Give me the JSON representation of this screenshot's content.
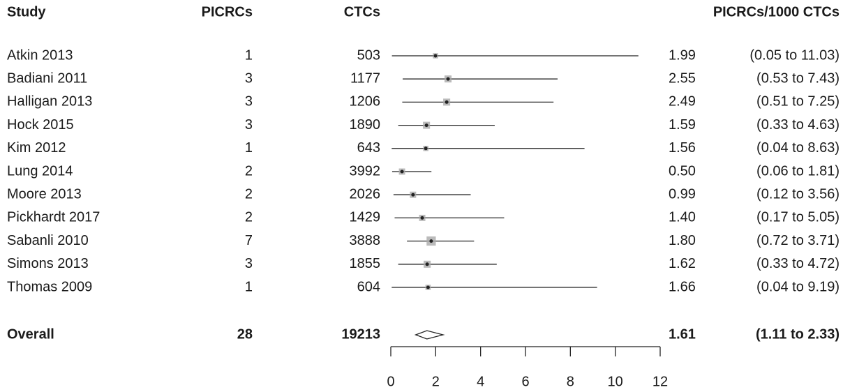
{
  "chart_data": {
    "type": "forest",
    "headers": {
      "study": "Study",
      "picrcs": "PICRCs",
      "ctcs": "CTCs",
      "rate": "PICRCs/1000 CTCs"
    },
    "rows": [
      {
        "study": "Atkin 2013",
        "picrcs": 1,
        "ctcs": 503,
        "estimate": 1.99,
        "lower": 0.05,
        "upper": 11.03,
        "estimate_label": "1.99",
        "ci_label": "(0.05 to 11.03)"
      },
      {
        "study": "Badiani 2011",
        "picrcs": 3,
        "ctcs": 1177,
        "estimate": 2.55,
        "lower": 0.53,
        "upper": 7.43,
        "estimate_label": "2.55",
        "ci_label": "(0.53 to 7.43)"
      },
      {
        "study": "Halligan 2013",
        "picrcs": 3,
        "ctcs": 1206,
        "estimate": 2.49,
        "lower": 0.51,
        "upper": 7.25,
        "estimate_label": "2.49",
        "ci_label": "(0.51 to 7.25)"
      },
      {
        "study": "Hock 2015",
        "picrcs": 3,
        "ctcs": 1890,
        "estimate": 1.59,
        "lower": 0.33,
        "upper": 4.63,
        "estimate_label": "1.59",
        "ci_label": "(0.33 to 4.63)"
      },
      {
        "study": "Kim 2012",
        "picrcs": 1,
        "ctcs": 643,
        "estimate": 1.56,
        "lower": 0.04,
        "upper": 8.63,
        "estimate_label": "1.56",
        "ci_label": "(0.04 to 8.63)"
      },
      {
        "study": "Lung 2014",
        "picrcs": 2,
        "ctcs": 3992,
        "estimate": 0.5,
        "lower": 0.06,
        "upper": 1.81,
        "estimate_label": "0.50",
        "ci_label": "(0.06 to 1.81)"
      },
      {
        "study": "Moore 2013",
        "picrcs": 2,
        "ctcs": 2026,
        "estimate": 0.99,
        "lower": 0.12,
        "upper": 3.56,
        "estimate_label": "0.99",
        "ci_label": "(0.12 to 3.56)"
      },
      {
        "study": "Pickhardt 2017",
        "picrcs": 2,
        "ctcs": 1429,
        "estimate": 1.4,
        "lower": 0.17,
        "upper": 5.05,
        "estimate_label": "1.40",
        "ci_label": "(0.17 to 5.05)"
      },
      {
        "study": "Sabanli 2010",
        "picrcs": 7,
        "ctcs": 3888,
        "estimate": 1.8,
        "lower": 0.72,
        "upper": 3.71,
        "estimate_label": "1.80",
        "ci_label": "(0.72 to 3.71)"
      },
      {
        "study": "Simons 2013",
        "picrcs": 3,
        "ctcs": 1855,
        "estimate": 1.62,
        "lower": 0.33,
        "upper": 4.72,
        "estimate_label": "1.62",
        "ci_label": "(0.33 to 4.72)"
      },
      {
        "study": "Thomas 2009",
        "picrcs": 1,
        "ctcs": 604,
        "estimate": 1.66,
        "lower": 0.04,
        "upper": 9.19,
        "estimate_label": "1.66",
        "ci_label": "(0.04 to 9.19)"
      }
    ],
    "overall": {
      "study": "Overall",
      "picrcs": 28,
      "ctcs": 19213,
      "estimate": 1.61,
      "lower": 1.11,
      "upper": 2.33,
      "estimate_label": "1.61",
      "ci_label": "(1.11 to 2.33)"
    },
    "xlim": [
      0,
      12
    ],
    "xticks": [
      0,
      2,
      4,
      6,
      8,
      10,
      12
    ]
  }
}
